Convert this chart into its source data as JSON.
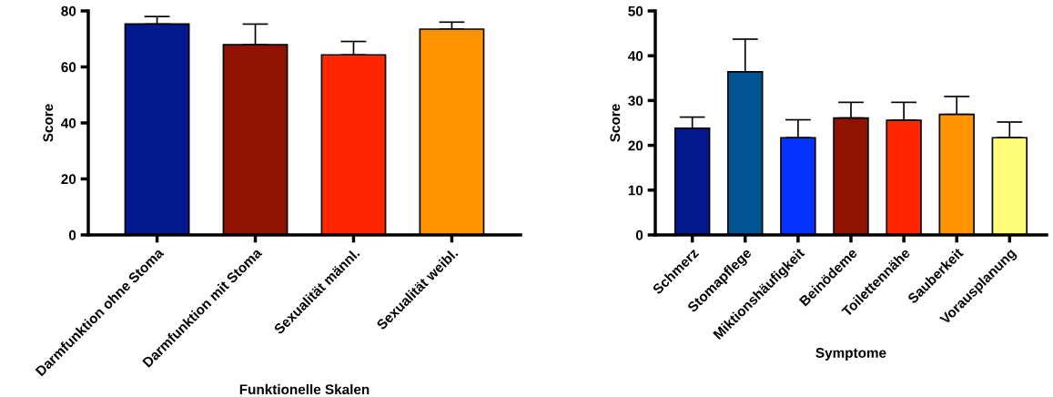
{
  "chart_data": [
    {
      "type": "bar",
      "xlabel": "Funktionelle Skalen",
      "ylabel": "Score",
      "categories": [
        "Darmfunktion ohne Stoma",
        "Darmfunktion mit Stoma",
        "Sexualität männl.",
        "Sexualität weibl."
      ],
      "values": [
        75.3,
        67.9,
        64.3,
        73.5
      ],
      "colors": [
        "#021a8e",
        "#8f1300",
        "#ff2600",
        "#ff9300"
      ],
      "errors": [
        [
          75.3,
          78.0
        ],
        [
          67.9,
          75.3
        ],
        [
          64.3,
          69.1
        ],
        [
          73.5,
          76.0
        ]
      ],
      "ylim": [
        0,
        80
      ],
      "yticks": [
        0,
        20,
        40,
        60,
        80
      ],
      "grid": false,
      "legend": false
    },
    {
      "type": "bar",
      "xlabel": "Symptome",
      "ylabel": "Score",
      "categories": [
        "Schmerz",
        "Stomapflege",
        "Miktionshäufigkeit",
        "Beinödeme",
        "Toilettennähe",
        "Sauberkeit",
        "Vorausplanung"
      ],
      "values": [
        23.8,
        36.4,
        21.7,
        26.1,
        25.6,
        26.9,
        21.7
      ],
      "colors": [
        "#021a8e",
        "#005493",
        "#0433ff",
        "#8f1300",
        "#ff2600",
        "#ff9300",
        "#fffc79"
      ],
      "errors": [
        [
          23.8,
          26.3
        ],
        [
          36.4,
          43.7
        ],
        [
          21.7,
          25.7
        ],
        [
          26.1,
          29.6
        ],
        [
          25.6,
          29.6
        ],
        [
          26.9,
          30.9
        ],
        [
          21.7,
          25.2
        ]
      ],
      "ylim": [
        0,
        50
      ],
      "yticks": [
        0,
        10,
        20,
        30,
        40,
        50
      ],
      "grid": false,
      "legend": false
    }
  ]
}
